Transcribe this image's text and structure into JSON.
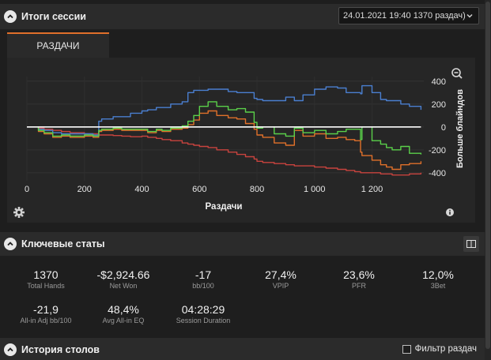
{
  "session": {
    "title": "Итоги сессии",
    "selected_session": "24.01.2021 19:40 1370 раздач)"
  },
  "tabs": [
    {
      "label": "РАЗДАЧИ"
    }
  ],
  "chart_data": {
    "type": "line",
    "title": "",
    "xlabel": "Раздачи",
    "ylabel": "Больше блайндов",
    "xlim": [
      0,
      1380
    ],
    "ylim": [
      -470,
      440
    ],
    "x_ticks": [
      {
        "value": 0,
        "label": "0"
      },
      {
        "value": 200,
        "label": "200"
      },
      {
        "value": 400,
        "label": "400"
      },
      {
        "value": 600,
        "label": "600"
      },
      {
        "value": 800,
        "label": "800"
      },
      {
        "value": 1000,
        "label": "1 000"
      },
      {
        "value": 1200,
        "label": "1 200"
      }
    ],
    "y_ticks": [
      {
        "value": 400,
        "label": "400"
      },
      {
        "value": 200,
        "label": "200"
      },
      {
        "value": 0,
        "label": "0"
      },
      {
        "value": -200,
        "label": "-200"
      },
      {
        "value": -400,
        "label": "-400"
      }
    ],
    "x": [
      0,
      40,
      60,
      90,
      120,
      150,
      200,
      230,
      250,
      260,
      300,
      330,
      360,
      400,
      420,
      450,
      470,
      500,
      540,
      560,
      580,
      600,
      630,
      660,
      700,
      730,
      760,
      790,
      800,
      820,
      860,
      900,
      930,
      960,
      1000,
      1040,
      1080,
      1110,
      1140,
      1160,
      1165,
      1200,
      1230,
      1250,
      1270,
      1300,
      1330,
      1370
    ],
    "series": [
      {
        "name": "Blue",
        "color": "#4a7fd0",
        "values": [
          0,
          -20,
          -30,
          -50,
          -60,
          -60,
          -60,
          -70,
          50,
          70,
          90,
          90,
          120,
          140,
          150,
          170,
          170,
          200,
          220,
          300,
          320,
          320,
          330,
          330,
          310,
          300,
          300,
          250,
          240,
          230,
          230,
          260,
          230,
          280,
          330,
          350,
          340,
          300,
          300,
          290,
          360,
          300,
          240,
          230,
          230,
          200,
          180,
          150
        ]
      },
      {
        "name": "Green",
        "color": "#5ad04a",
        "values": [
          0,
          -30,
          -50,
          -80,
          -70,
          -80,
          -70,
          -80,
          -30,
          -20,
          -10,
          -20,
          -20,
          -20,
          -40,
          -20,
          -30,
          -10,
          10,
          50,
          100,
          180,
          220,
          180,
          150,
          160,
          130,
          40,
          -10,
          0,
          -60,
          -80,
          -10,
          -50,
          -30,
          -60,
          -40,
          -20,
          -20,
          -110,
          0,
          -120,
          -150,
          -180,
          -200,
          -170,
          -230,
          -240
        ]
      },
      {
        "name": "Orange",
        "color": "#e0702a",
        "values": [
          0,
          -40,
          -60,
          -90,
          -80,
          -90,
          -80,
          -90,
          -40,
          -30,
          -20,
          -30,
          -30,
          -30,
          -50,
          -30,
          -40,
          -20,
          -10,
          20,
          60,
          120,
          140,
          100,
          80,
          70,
          30,
          -20,
          -70,
          -90,
          -140,
          -160,
          -30,
          -80,
          -60,
          -100,
          -90,
          -110,
          -120,
          -220,
          -250,
          -290,
          -330,
          -350,
          -370,
          -330,
          -320,
          -300
        ]
      },
      {
        "name": "Red",
        "color": "#c8433e",
        "values": [
          0,
          -10,
          -20,
          -30,
          -40,
          -50,
          -60,
          -60,
          -70,
          -70,
          -75,
          -80,
          -85,
          -80,
          -90,
          -100,
          -110,
          -120,
          -140,
          -150,
          -160,
          -170,
          -180,
          -200,
          -220,
          -240,
          -260,
          -280,
          -300,
          -310,
          -320,
          -330,
          -340,
          -340,
          -350,
          -360,
          -370,
          -380,
          -390,
          -400,
          -400,
          -400,
          -410,
          -410,
          -420,
          -420,
          -410,
          -400
        ]
      },
      {
        "name": "Zero",
        "color": "#ffffff",
        "values": [
          0,
          0,
          0,
          0,
          0,
          0,
          0,
          0,
          0,
          0,
          0,
          0,
          0,
          0,
          0,
          0,
          0,
          0,
          0,
          0,
          0,
          0,
          0,
          0,
          0,
          0,
          0,
          0,
          0,
          0,
          0,
          0,
          0,
          0,
          0,
          0,
          0,
          0,
          0,
          0,
          0,
          0,
          0,
          0,
          0,
          0,
          0,
          0
        ]
      }
    ]
  },
  "stats": {
    "title": "Ключевые статы",
    "items": [
      {
        "value": "1370",
        "label": "Total Hands"
      },
      {
        "value": "-$2,924.66",
        "label": "Net Won"
      },
      {
        "value": "-17",
        "label": "bb/100"
      },
      {
        "value": "27,4%",
        "label": "VPIP"
      },
      {
        "value": "23,6%",
        "label": "PFR"
      },
      {
        "value": "12,0%",
        "label": "3Bet"
      },
      {
        "value": "-21,9",
        "label": "All-in Adj bb/100"
      },
      {
        "value": "48,4%",
        "label": "Avg All-in EQ"
      },
      {
        "value": "04:28:29",
        "label": "Session Duration"
      }
    ]
  },
  "history": {
    "title": "История столов",
    "filter_label": "Фильтр раздач"
  },
  "colors": {
    "accent": "#e0702a"
  },
  "icons": {
    "collapse": "chevron-up-icon",
    "dropdown": "chevron-down-icon",
    "zoom": "zoom-out-icon",
    "settings": "gear-icon",
    "info": "info-icon",
    "layout": "split-layout-icon",
    "checkbox": "checkbox-icon"
  }
}
